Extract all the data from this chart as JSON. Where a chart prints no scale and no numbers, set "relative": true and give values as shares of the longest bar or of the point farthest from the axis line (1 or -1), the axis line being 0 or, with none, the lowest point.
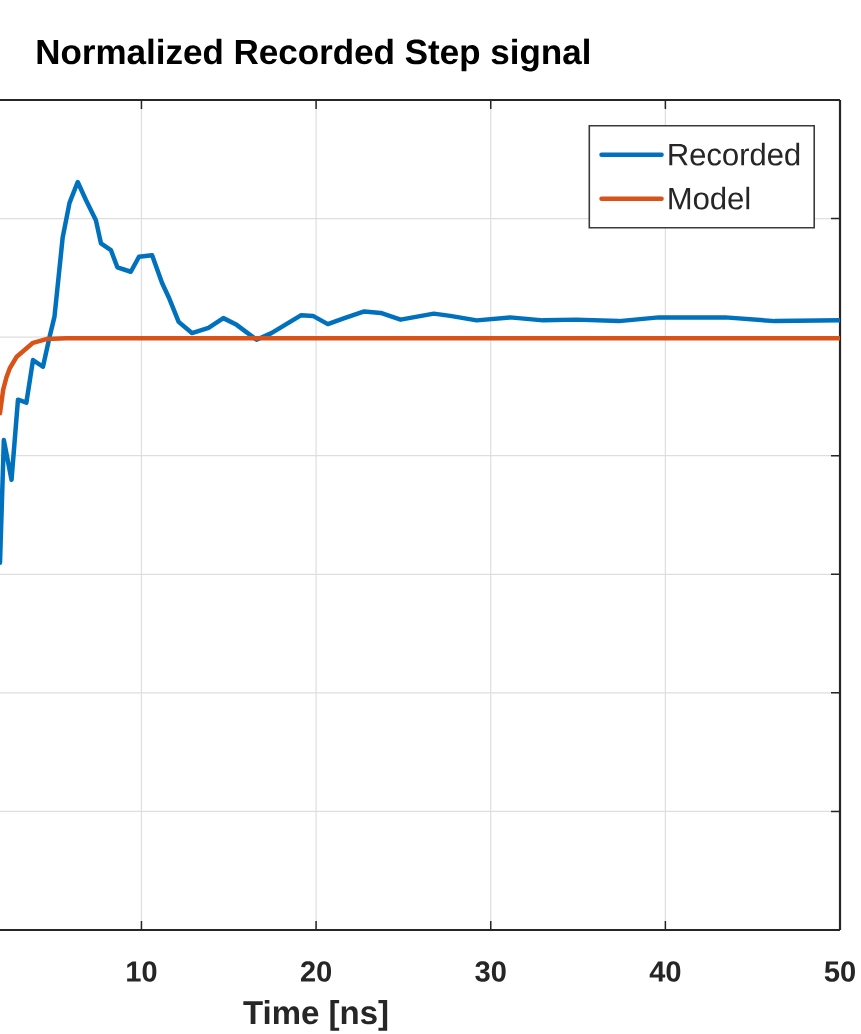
{
  "chart_data": {
    "type": "line",
    "title": "Normalized Recorded Step signal",
    "xlabel": "Time [ns]",
    "relative": true,
    "xlim": [
      1.9,
      50
    ],
    "xticks": [
      10,
      20,
      30,
      40,
      50
    ],
    "grid": true,
    "legend": "top right",
    "series": [
      {
        "name": "Recorded",
        "color": "#0072bd",
        "x": [
          1.9,
          2.12,
          2.56,
          2.93,
          3.41,
          3.79,
          4.36,
          4.74,
          5.02,
          5.49,
          5.88,
          6.35,
          6.82,
          7.39,
          7.68,
          8.25,
          8.62,
          9.39,
          9.86,
          10.61,
          11.18,
          11.56,
          12.13,
          12.89,
          13.84,
          14.69,
          15.45,
          16.59,
          17.44,
          19.15,
          19.82,
          20.67,
          21.62,
          22.76,
          23.7,
          24.84,
          26.74,
          27.68,
          29.2,
          31.1,
          33.0,
          34.89,
          37.34,
          39.62,
          43.43,
          46.27,
          50
        ],
        "values": [
          0.491,
          0.655,
          0.602,
          0.709,
          0.705,
          0.762,
          0.753,
          0.793,
          0.82,
          0.926,
          0.972,
          1.0,
          0.976,
          0.949,
          0.918,
          0.909,
          0.886,
          0.88,
          0.9,
          0.902,
          0.865,
          0.846,
          0.813,
          0.798,
          0.805,
          0.818,
          0.809,
          0.789,
          0.798,
          0.822,
          0.821,
          0.81,
          0.818,
          0.827,
          0.825,
          0.816,
          0.824,
          0.821,
          0.815,
          0.819,
          0.815,
          0.816,
          0.814,
          0.819,
          0.819,
          0.814,
          0.815
        ]
      },
      {
        "name": "Model",
        "color": "#d95319",
        "x": [
          1.9,
          2.08,
          2.27,
          2.46,
          2.84,
          3.79,
          4.55,
          5.69,
          50
        ],
        "values": [
          0.691,
          0.722,
          0.739,
          0.751,
          0.766,
          0.785,
          0.79,
          0.791,
          0.791
        ]
      }
    ]
  }
}
